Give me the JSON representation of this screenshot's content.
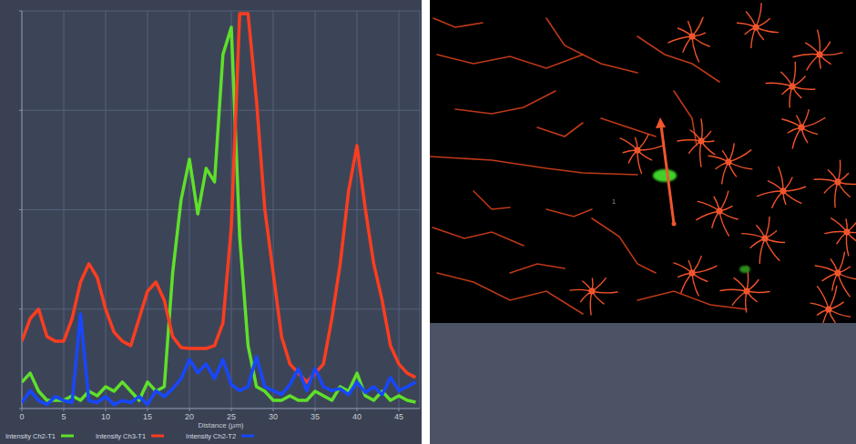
{
  "chart_data": {
    "type": "line",
    "x_label": "Distance (µm)",
    "x": [
      0,
      1,
      2,
      3,
      4,
      5,
      6,
      7,
      8,
      9,
      10,
      11,
      12,
      13,
      14,
      15,
      16,
      17,
      18,
      19,
      20,
      21,
      22,
      23,
      24,
      25,
      26,
      27,
      28,
      29,
      30,
      31,
      32,
      33,
      34,
      35,
      36,
      37,
      38,
      39,
      40,
      41,
      42,
      43,
      44,
      45,
      46,
      47
    ],
    "xlim": [
      0,
      47.5
    ],
    "xticks": [
      0,
      5,
      10,
      15,
      20,
      25,
      30,
      35,
      40,
      45
    ],
    "ylim": [
      0,
      2000
    ],
    "yticks": [
      0,
      500,
      1000,
      1500,
      2000
    ],
    "grid": true,
    "legend": "bottom",
    "tick_labels": "x",
    "series": [
      {
        "name": "Intensity Ch2-T1",
        "color": "#5fe02a",
        "values": [
          133,
          178,
          87,
          41,
          41,
          41,
          64,
          41,
          87,
          64,
          110,
          87,
          133,
          87,
          41,
          133,
          87,
          110,
          682,
          1048,
          1254,
          979,
          1208,
          1140,
          1780,
          1918,
          865,
          316,
          110,
          87,
          41,
          41,
          64,
          41,
          41,
          87,
          64,
          41,
          110,
          87,
          178,
          64,
          41,
          87,
          41,
          64,
          41,
          32
        ]
      },
      {
        "name": "Intensity Ch3-T1",
        "color": "#ff3d1f",
        "values": [
          339,
          453,
          500,
          362,
          339,
          339,
          453,
          636,
          728,
          659,
          500,
          384,
          339,
          316,
          453,
          590,
          636,
          545,
          362,
          307,
          302,
          302,
          302,
          316,
          430,
          911,
          1986,
          1986,
          1551,
          1002,
          682,
          362,
          224,
          178,
          133,
          178,
          224,
          453,
          728,
          1094,
          1323,
          1002,
          728,
          545,
          316,
          224,
          178,
          156
        ]
      },
      {
        "name": "Intensity Ch2-T2",
        "color": "#1747ff",
        "values": [
          30,
          90,
          40,
          20,
          60,
          40,
          30,
          476,
          40,
          30,
          60,
          20,
          40,
          30,
          60,
          20,
          90,
          60,
          100,
          150,
          247,
          180,
          224,
          150,
          247,
          120,
          90,
          110,
          261,
          110,
          90,
          70,
          120,
          201,
          90,
          201,
          110,
          90,
          100,
          70,
          133,
          80,
          110,
          70,
          156,
          90,
          110,
          133
        ]
      }
    ]
  },
  "image": {
    "label": "1"
  }
}
